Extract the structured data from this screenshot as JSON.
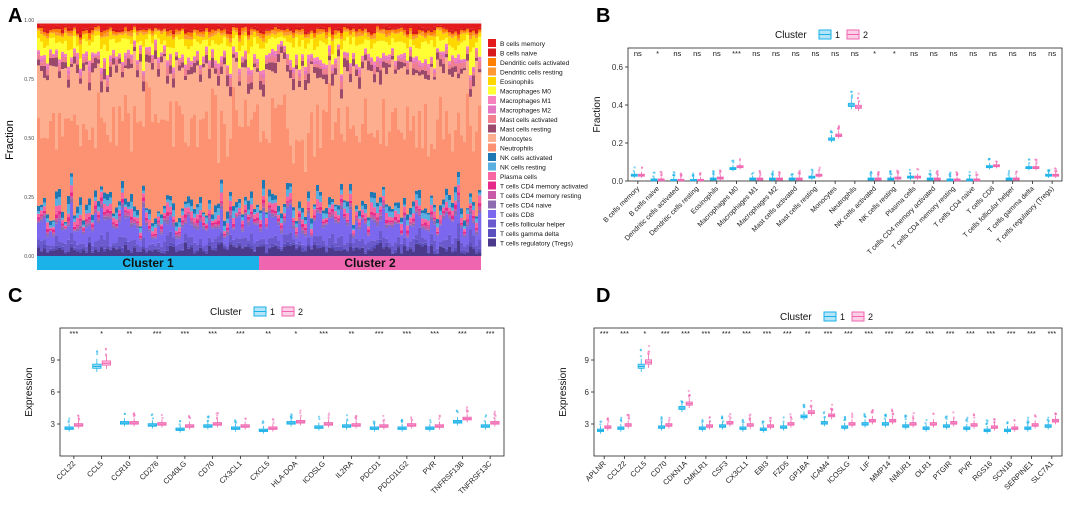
{
  "colors": {
    "cluster1": "#1ab2e8",
    "cluster2": "#f065b0",
    "box1_fill": "#b3e4f7",
    "box2_fill": "#fbd0e6",
    "immune": [
      "#e41a1c",
      "#d7191c",
      "#ff7f00",
      "#ff9933",
      "#ffd700",
      "#ffff33",
      "#f781bf",
      "#e377c2",
      "#f08090",
      "#9b4a6b",
      "#fdae8e",
      "#fc9272",
      "#1f78b4",
      "#5aaee0",
      "#f765a3",
      "#e7298a",
      "#c85aa8",
      "#8c6bb1",
      "#7b68ee",
      "#6a5acd",
      "#5b4fc0",
      "#4b3a8c"
    ]
  },
  "chart_data": [
    {
      "panel": "A",
      "type": "bar",
      "stacked": true,
      "ylabel": "Fraction",
      "yticks": [
        "0.00",
        "0.25",
        "0.50",
        "0.75",
        "1.00"
      ],
      "ylim": [
        0,
        1
      ],
      "cluster_bar": [
        "Cluster 1",
        "Cluster 2"
      ],
      "cluster_split_fraction": 0.5,
      "legend": [
        "B cells memory",
        "B cells naive",
        "Dendritic cells activated",
        "Dendritic cells resting",
        "Eosinophils",
        "Macrophages M0",
        "Macrophages M1",
        "Macrophages M2",
        "Mast cells activated",
        "Mast cells resting",
        "Monocytes",
        "Neutrophils",
        "NK cells activated",
        "NK cells resting",
        "Plasma cells",
        "T cells CD4 memory activated",
        "T cells CD4 memory resting",
        "T cells CD4 naive",
        "T cells CD8",
        "T cells follicular helper",
        "T cells gamma delta",
        "T cells regulatory (Tregs)"
      ],
      "mean_fractions": [
        0.02,
        0.01,
        0.01,
        0.01,
        0.03,
        0.06,
        0.01,
        0.01,
        0.02,
        0.03,
        0.22,
        0.39,
        0.02,
        0.02,
        0.02,
        0.01,
        0.01,
        0.01,
        0.07,
        0.03,
        0.01,
        0.03
      ]
    },
    {
      "panel": "B",
      "type": "box",
      "legend_title": "Cluster",
      "legend": [
        "1",
        "2"
      ],
      "ylabel": "Fraction",
      "ylim": [
        0,
        0.7
      ],
      "yticks": [
        "0.0",
        "0.2",
        "0.4",
        "0.6"
      ],
      "categories": [
        "B cells memory",
        "B cells naive",
        "Dendritic cells activated",
        "Dendritic cells resting",
        "Eosinophils",
        "Macrophages M0",
        "Macrophages M1",
        "Macrophages M2",
        "Mast cells activated",
        "Mast cells resting",
        "Monocytes",
        "Neutrophils",
        "NK cells activated",
        "NK cells resting",
        "Plasma cells",
        "T cells CD4 memory activated",
        "T cells CD4 memory resting",
        "T cells CD4 naive",
        "T cells CD8",
        "T cells follicular helper",
        "T cells gamma delta",
        "T cells regulatory (Tregs)"
      ],
      "significance": [
        "ns",
        "*",
        "ns",
        "ns",
        "ns",
        "***",
        "ns",
        "ns",
        "ns",
        "ns",
        "ns",
        "ns",
        "*",
        "*",
        "ns",
        "ns",
        "ns",
        "ns",
        "ns",
        "ns",
        "ns",
        "ns"
      ],
      "series": [
        {
          "name": "1",
          "medians": [
            0.03,
            0.005,
            0.003,
            0.003,
            0.01,
            0.065,
            0.01,
            0.01,
            0.01,
            0.02,
            0.22,
            0.4,
            0.01,
            0.01,
            0.02,
            0.01,
            0.005,
            0.005,
            0.075,
            0.01,
            0.07,
            0.03
          ]
        },
        {
          "name": "2",
          "medians": [
            0.03,
            0.005,
            0.003,
            0.003,
            0.015,
            0.075,
            0.01,
            0.01,
            0.01,
            0.03,
            0.24,
            0.39,
            0.01,
            0.015,
            0.02,
            0.01,
            0.005,
            0.005,
            0.08,
            0.01,
            0.07,
            0.03
          ]
        }
      ]
    },
    {
      "panel": "C",
      "type": "box",
      "legend_title": "Cluster",
      "legend": [
        "1",
        "2"
      ],
      "ylabel": "Expression",
      "ylim": [
        0,
        12
      ],
      "yticks": [
        "3",
        "6",
        "9"
      ],
      "categories": [
        "CCL22",
        "CCL5",
        "CCR10",
        "CD276",
        "CD40LG",
        "CD70",
        "CX3CL1",
        "CXCL5",
        "HLA-DOA",
        "ICOSLG",
        "IL2RA",
        "PDCD1",
        "PDCD1LG2",
        "PVR",
        "TNFRSF13B",
        "TNFRSF13C"
      ],
      "significance": [
        "***",
        "*",
        "**",
        "***",
        "***",
        "***",
        "***",
        "**",
        "*",
        "***",
        "**",
        "***",
        "***",
        "***",
        "***",
        "***"
      ],
      "series": [
        {
          "name": "1",
          "medians": [
            2.6,
            8.4,
            3.1,
            2.9,
            2.5,
            2.8,
            2.6,
            2.4,
            3.1,
            2.7,
            2.8,
            2.6,
            2.6,
            2.6,
            3.2,
            2.8
          ]
        },
        {
          "name": "2",
          "medians": [
            2.9,
            8.7,
            3.1,
            3.0,
            2.8,
            3.0,
            2.8,
            2.6,
            3.2,
            3.0,
            2.9,
            2.8,
            2.9,
            2.8,
            3.5,
            3.1
          ]
        }
      ]
    },
    {
      "panel": "D",
      "type": "box",
      "legend_title": "Cluster",
      "legend": [
        "1",
        "2"
      ],
      "ylabel": "Expression",
      "ylim": [
        0,
        12
      ],
      "yticks": [
        "3",
        "6",
        "9"
      ],
      "categories": [
        "APLNR",
        "CCL22",
        "CCL5",
        "CD70",
        "CDKN1A",
        "CMKLR1",
        "CSF3",
        "CX3CL1",
        "EBI3",
        "FZD5",
        "GP1BA",
        "ICAM4",
        "ICOSLG",
        "LIF",
        "MMP14",
        "NMUR1",
        "OLR1",
        "PTGIR",
        "PVR",
        "RGS16",
        "SCN1B",
        "SERPINE1",
        "SLC7A1"
      ],
      "significance": [
        "***",
        "***",
        "*",
        "***",
        "***",
        "***",
        "***",
        "***",
        "***",
        "***",
        "**",
        "***",
        "***",
        "***",
        "***",
        "***",
        "***",
        "***",
        "***",
        "***",
        "***",
        "***",
        "***"
      ],
      "series": [
        {
          "name": "1",
          "medians": [
            2.4,
            2.6,
            8.4,
            2.7,
            4.5,
            2.6,
            2.8,
            2.6,
            2.5,
            2.7,
            3.7,
            3.1,
            2.7,
            3.0,
            3.0,
            2.8,
            2.6,
            2.8,
            2.6,
            2.4,
            2.4,
            2.6,
            2.8
          ]
        },
        {
          "name": "2",
          "medians": [
            2.7,
            2.9,
            8.8,
            2.9,
            4.9,
            2.8,
            3.1,
            2.9,
            2.8,
            3.0,
            4.1,
            3.8,
            3.0,
            3.3,
            3.3,
            3.0,
            3.0,
            3.1,
            2.9,
            2.7,
            2.6,
            2.9,
            3.3
          ]
        }
      ]
    }
  ]
}
